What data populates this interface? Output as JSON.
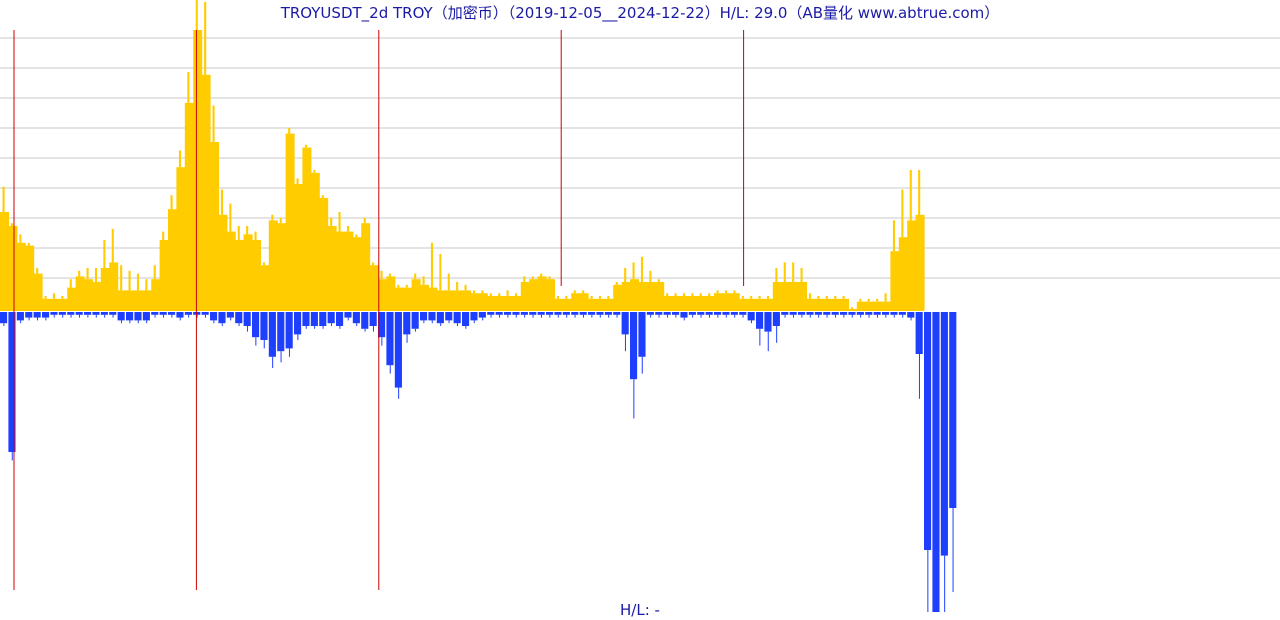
{
  "title": "TROYUSDT_2d TROY（加密币）（2019-12-05__2024-12-22）H/L: 29.0（AB量化  www.abtrue.com）",
  "footer": "H/L: -",
  "colors": {
    "upper_fill": "#ffcc00",
    "lower_fill": "#1f3fff",
    "grid": "#c8c8c8",
    "marker": "#cc0000",
    "text": "#1a1aa6"
  },
  "chart_data": {
    "type": "bar",
    "grid": true,
    "gridlines": 9,
    "marker_count": 5,
    "series": [
      {
        "values": [
          3.5,
          3.0,
          2.4,
          2.3,
          1.3,
          0.4,
          0.4,
          0.4,
          0.8,
          1.2,
          1.1,
          1.0,
          1.5,
          1.7,
          0.7,
          0.7,
          0.7,
          0.7,
          1.1,
          2.5,
          3.6,
          5.1,
          7.4,
          10.0,
          8.4,
          6.0,
          3.4,
          2.8,
          2.5,
          2.7,
          2.5,
          1.6,
          3.2,
          3.1,
          6.3,
          4.5,
          5.8,
          4.9,
          4.0,
          3.0,
          2.8,
          2.8,
          2.6,
          3.1,
          1.6,
          1.1,
          1.2,
          0.8,
          0.8,
          1.1,
          0.9,
          0.8,
          0.7,
          0.7,
          0.7,
          0.7,
          0.6,
          0.6,
          0.5,
          0.5,
          0.5,
          0.5,
          1.0,
          1.1,
          1.2,
          1.1,
          0.4,
          0.4,
          0.6,
          0.6,
          0.4,
          0.4,
          0.4,
          0.9,
          1.0,
          1.1,
          1.0,
          1.0,
          1.0,
          0.5,
          0.5,
          0.5,
          0.5,
          0.5,
          0.5,
          0.6,
          0.6,
          0.6,
          0.4,
          0.4,
          0.4,
          0.4,
          1.0,
          1.0,
          1.0,
          1.0,
          0.4,
          0.4,
          0.4,
          0.4,
          0.4,
          0.0,
          0.3,
          0.3,
          0.3,
          0.3,
          2.1,
          2.6,
          3.2,
          3.4
        ],
        "spike_values": [
          0.9,
          0.1,
          0.3,
          0.1,
          0.2,
          0.1,
          0.2,
          0.1,
          0.3,
          0.2,
          0.4,
          0.5,
          1.0,
          1.2,
          0.9,
          0.7,
          0.6,
          0.4,
          0.5,
          0.3,
          0.5,
          0.6,
          1.1,
          2.1,
          2.6,
          1.3,
          0.9,
          1.0,
          0.5,
          0.3,
          0.3,
          0.1,
          0.2,
          0.2,
          0.2,
          0.2,
          0.1,
          0.1,
          0.1,
          0.3,
          0.7,
          0.2,
          0.1,
          0.2,
          0.1,
          0.3,
          0.1,
          0.1,
          0.1,
          0.2,
          0.3,
          1.6,
          1.3,
          0.6,
          0.3,
          0.2,
          0.1,
          0.1,
          0.1,
          0.1,
          0.2,
          0.1,
          0.2,
          0.1,
          0.1,
          0.1,
          0.1,
          0.1,
          0.1,
          0.1,
          0.1,
          0.1,
          0.1,
          0.1,
          0.5,
          0.6,
          0.9,
          0.4,
          0.1,
          0.1,
          0.1,
          0.1,
          0.1,
          0.1,
          0.1,
          0.1,
          0.1,
          0.1,
          0.1,
          0.1,
          0.1,
          0.1,
          0.5,
          0.7,
          0.7,
          0.5,
          0.2,
          0.1,
          0.1,
          0.1,
          0.1,
          0.1,
          0.1,
          0.1,
          0.1,
          0.3,
          1.1,
          1.7,
          1.8,
          1.6
        ]
      },
      {
        "values": [
          0.4,
          5.0,
          0.3,
          0.2,
          0.2,
          0.2,
          0.1,
          0.1,
          0.1,
          0.1,
          0.1,
          0.1,
          0.1,
          0.1,
          0.3,
          0.3,
          0.3,
          0.3,
          0.1,
          0.1,
          0.1,
          0.2,
          0.1,
          0.1,
          0.1,
          0.3,
          0.4,
          0.2,
          0.4,
          0.5,
          0.9,
          1.0,
          1.6,
          1.4,
          1.3,
          0.8,
          0.5,
          0.5,
          0.5,
          0.4,
          0.5,
          0.2,
          0.4,
          0.6,
          0.5,
          0.9,
          1.9,
          2.7,
          0.8,
          0.6,
          0.3,
          0.3,
          0.4,
          0.3,
          0.4,
          0.5,
          0.3,
          0.2,
          0.1,
          0.1,
          0.1,
          0.1,
          0.1,
          0.1,
          0.1,
          0.1,
          0.1,
          0.1,
          0.1,
          0.1,
          0.1,
          0.1,
          0.1,
          0.1,
          0.8,
          2.4,
          1.6,
          0.1,
          0.1,
          0.1,
          0.1,
          0.2,
          0.1,
          0.1,
          0.1,
          0.1,
          0.1,
          0.1,
          0.1,
          0.3,
          0.6,
          0.7,
          0.5,
          0.1,
          0.1,
          0.1,
          0.1,
          0.1,
          0.1,
          0.1,
          0.1,
          0.1,
          0.1,
          0.1,
          0.1,
          0.1,
          0.1,
          0.1,
          0.2,
          1.5,
          8.5,
          12.4,
          8.7,
          7.0
        ],
        "spike_values": [
          0.1,
          0.3,
          0.1,
          0.1,
          0.1,
          0.1,
          0.1,
          0.1,
          0.1,
          0.1,
          0.1,
          0.1,
          0.1,
          0.1,
          0.1,
          0.1,
          0.1,
          0.1,
          0.1,
          0.1,
          0.1,
          0.1,
          0.1,
          0.1,
          0.1,
          0.1,
          0.1,
          0.1,
          0.1,
          0.2,
          0.3,
          0.3,
          0.4,
          0.4,
          0.3,
          0.2,
          0.1,
          0.1,
          0.1,
          0.1,
          0.1,
          0.1,
          0.1,
          0.1,
          0.2,
          0.3,
          0.3,
          0.4,
          0.3,
          0.1,
          0.1,
          0.1,
          0.1,
          0.1,
          0.1,
          0.1,
          0.1,
          0.1,
          0.1,
          0.1,
          0.1,
          0.1,
          0.1,
          0.1,
          0.1,
          0.1,
          0.1,
          0.1,
          0.1,
          0.1,
          0.1,
          0.1,
          0.1,
          0.1,
          0.6,
          1.4,
          0.6,
          0.1,
          0.1,
          0.1,
          0.1,
          0.1,
          0.1,
          0.1,
          0.1,
          0.1,
          0.1,
          0.1,
          0.1,
          0.1,
          0.6,
          0.7,
          0.6,
          0.1,
          0.1,
          0.1,
          0.1,
          0.1,
          0.1,
          0.1,
          0.1,
          0.1,
          0.1,
          0.1,
          0.1,
          0.1,
          0.1,
          0.1,
          0.1,
          1.6,
          3.4,
          2.7,
          3.9,
          3.0
        ]
      }
    ]
  }
}
